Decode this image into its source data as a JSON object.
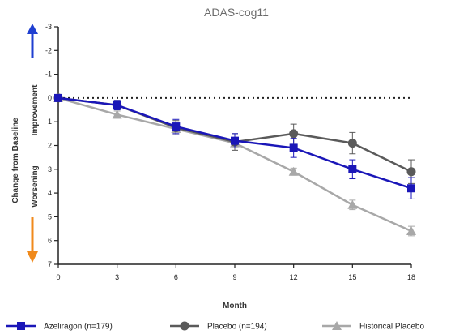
{
  "chart_data": {
    "type": "line",
    "title": "ADAS-cog11",
    "xlabel": "Month",
    "ylabel": "Change from Baseline",
    "ylabel_improvement": "Improvement",
    "ylabel_worsening": "Worsening",
    "x": [
      0,
      3,
      6,
      9,
      12,
      15,
      18
    ],
    "xlim": [
      0,
      18
    ],
    "ylim": [
      -3,
      7
    ],
    "y_inverted": true,
    "y_ticks": [
      -3,
      -2,
      -1,
      0,
      1,
      2,
      3,
      4,
      5,
      6,
      7
    ],
    "y_tick_labels": [
      "-3",
      "-2",
      "-1",
      "0",
      "1",
      "2",
      "3",
      "4",
      "5",
      "6",
      "7"
    ],
    "x_tick_labels": [
      "0",
      "3",
      "6",
      "9",
      "12",
      "15",
      "18"
    ],
    "reference_line": 0,
    "grid": false,
    "legend_position": "bottom",
    "series": [
      {
        "name": "Azeliragon (n=179)",
        "marker": "square",
        "color": "#1a16b8",
        "values": [
          0,
          0.3,
          1.2,
          1.8,
          2.1,
          3.0,
          3.8
        ],
        "error": [
          0,
          0.2,
          0.3,
          0.3,
          0.4,
          0.4,
          0.45
        ]
      },
      {
        "name": "Placebo (n=194)",
        "marker": "circle",
        "color": "#5a5a5a",
        "values": [
          0,
          0.3,
          1.25,
          1.85,
          1.5,
          1.9,
          3.1
        ],
        "error": [
          0,
          0.2,
          0.3,
          0.35,
          0.4,
          0.45,
          0.5
        ]
      },
      {
        "name": "Historical Placebo",
        "marker": "triangle",
        "color": "#a8a8a8",
        "values": [
          0,
          0.7,
          1.3,
          1.9,
          3.1,
          4.5,
          5.6
        ],
        "error": [
          0,
          0.15,
          0.15,
          0.15,
          0.15,
          0.2,
          0.2
        ]
      }
    ],
    "colors": {
      "improvement_arrow": "#1f3fd1",
      "worsening_arrow": "#f08a1c",
      "axis": "#222222"
    }
  }
}
